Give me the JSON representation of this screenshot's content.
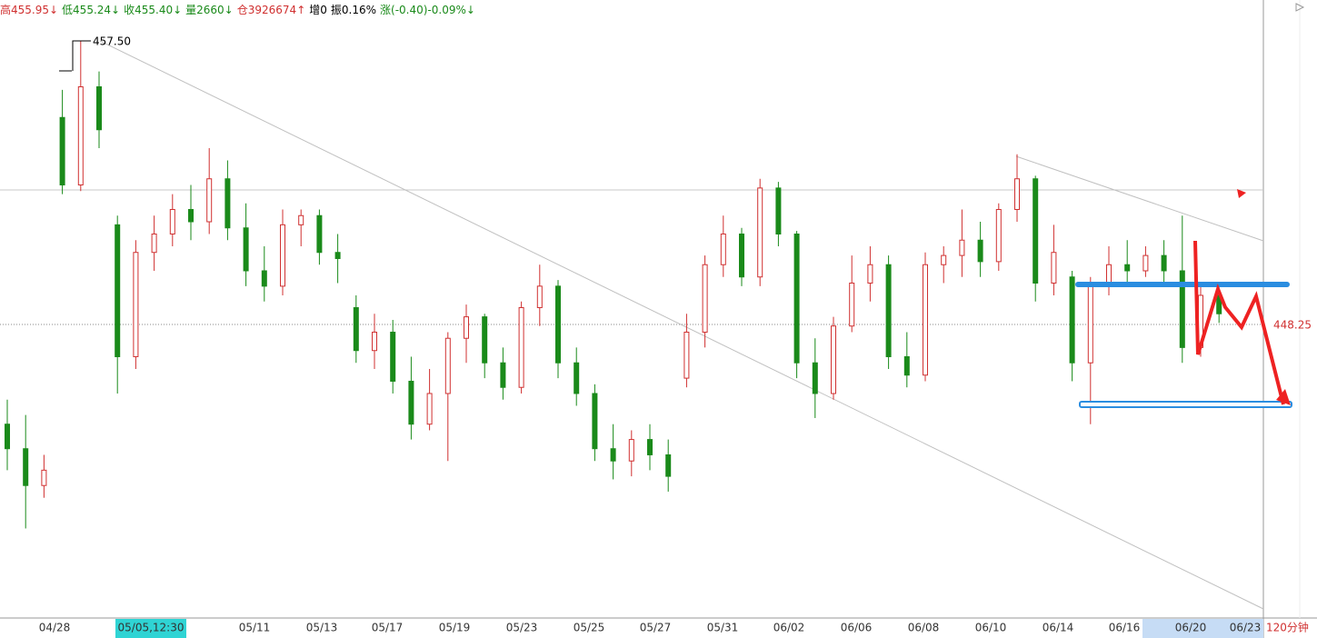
{
  "status": [
    "高455.95↓",
    "低455.24↓",
    "收455.40↓",
    "量2660↓",
    "仓3926674↑",
    "增0",
    "振0.16%",
    "涨(-0.40)-0.09%↓"
  ],
  "chart_data": {
    "type": "candlestick",
    "ylim": [
      438.68,
      458.83
    ],
    "peak_label": "457.50",
    "level_label": "448.25",
    "period": "120分钟",
    "dates": [
      "04/28",
      "05/05,12:30",
      "05/11",
      "05/13",
      "05/17",
      "05/19",
      "05/23",
      "05/25",
      "05/27",
      "05/31",
      "06/02",
      "06/06",
      "06/08",
      "06/10",
      "06/14",
      "06/16",
      "06/20",
      "06/23"
    ],
    "up_color": "#d03030",
    "down_color": "#1a8a1a",
    "candles": [
      [
        445.0,
        445.8,
        443.5,
        444.2
      ],
      [
        444.2,
        445.3,
        441.6,
        443.0
      ],
      [
        443.0,
        444.0,
        442.6,
        443.5
      ],
      [
        455.0,
        455.9,
        452.5,
        452.8
      ],
      [
        452.8,
        457.5,
        452.6,
        456.0
      ],
      [
        456.0,
        456.5,
        454.0,
        454.6
      ],
      [
        451.5,
        451.8,
        446.0,
        447.2
      ],
      [
        447.2,
        451.0,
        446.8,
        450.6
      ],
      [
        450.6,
        451.8,
        450.0,
        451.2
      ],
      [
        451.2,
        452.5,
        450.8,
        452.0
      ],
      [
        452.0,
        452.8,
        451.0,
        451.6
      ],
      [
        451.6,
        454.0,
        451.2,
        453.0
      ],
      [
        453.0,
        453.6,
        451.0,
        451.4
      ],
      [
        451.4,
        452.2,
        449.5,
        450.0
      ],
      [
        450.0,
        450.8,
        449.0,
        449.5
      ],
      [
        449.5,
        452.0,
        449.2,
        451.5
      ],
      [
        451.5,
        452.0,
        450.8,
        451.8
      ],
      [
        451.8,
        452.0,
        450.2,
        450.6
      ],
      [
        450.6,
        451.2,
        449.6,
        450.4
      ],
      [
        448.8,
        449.2,
        447.0,
        447.4
      ],
      [
        447.4,
        448.6,
        446.8,
        448.0
      ],
      [
        448.0,
        448.4,
        446.0,
        446.4
      ],
      [
        446.4,
        447.2,
        444.5,
        445.0
      ],
      [
        445.0,
        446.8,
        444.8,
        446.0
      ],
      [
        446.0,
        448.0,
        443.8,
        447.8
      ],
      [
        447.8,
        448.9,
        447.0,
        448.5
      ],
      [
        448.5,
        448.6,
        446.5,
        447.0
      ],
      [
        447.0,
        447.5,
        445.8,
        446.2
      ],
      [
        446.2,
        449.0,
        446.0,
        448.8
      ],
      [
        448.8,
        450.2,
        448.2,
        449.5
      ],
      [
        449.5,
        449.7,
        446.5,
        447.0
      ],
      [
        447.0,
        447.5,
        445.6,
        446.0
      ],
      [
        446.0,
        446.3,
        443.8,
        444.2
      ],
      [
        444.2,
        445.0,
        443.2,
        443.8
      ],
      [
        443.8,
        444.8,
        443.3,
        444.5
      ],
      [
        444.5,
        445.0,
        443.5,
        444.0
      ],
      [
        444.0,
        444.5,
        442.8,
        443.3
      ],
      [
        446.5,
        448.6,
        446.2,
        448.0
      ],
      [
        448.0,
        450.5,
        447.5,
        450.2
      ],
      [
        450.2,
        451.8,
        449.8,
        451.2
      ],
      [
        451.2,
        451.4,
        449.5,
        449.8
      ],
      [
        449.8,
        453.0,
        449.5,
        452.7
      ],
      [
        452.7,
        452.9,
        450.8,
        451.2
      ],
      [
        451.2,
        451.3,
        446.5,
        447.0
      ],
      [
        447.0,
        447.8,
        445.2,
        446.0
      ],
      [
        446.0,
        448.5,
        445.8,
        448.2
      ],
      [
        448.2,
        450.5,
        448.0,
        449.6
      ],
      [
        449.6,
        450.8,
        449.0,
        450.2
      ],
      [
        450.2,
        450.5,
        446.8,
        447.2
      ],
      [
        447.2,
        448.0,
        446.2,
        446.6
      ],
      [
        446.6,
        450.6,
        446.4,
        450.2
      ],
      [
        450.2,
        450.8,
        449.6,
        450.5
      ],
      [
        450.5,
        452.0,
        449.8,
        451.0
      ],
      [
        451.0,
        451.6,
        449.8,
        450.3
      ],
      [
        450.3,
        452.2,
        450.0,
        452.0
      ],
      [
        452.0,
        453.8,
        451.6,
        453.0
      ],
      [
        453.0,
        453.1,
        449.0,
        449.6
      ],
      [
        449.6,
        451.5,
        449.2,
        450.6
      ],
      [
        449.8,
        450.0,
        446.4,
        447.0
      ],
      [
        447.0,
        449.8,
        445.0,
        449.6
      ],
      [
        449.6,
        450.8,
        449.2,
        450.2
      ],
      [
        450.2,
        451.0,
        449.6,
        450.0
      ],
      [
        450.0,
        450.8,
        449.8,
        450.5
      ],
      [
        450.5,
        451.0,
        449.6,
        450.0
      ],
      [
        450.0,
        451.8,
        447.0,
        447.5
      ],
      [
        447.5,
        449.5,
        447.2,
        449.2
      ],
      [
        449.2,
        449.5,
        448.3,
        448.6
      ]
    ]
  }
}
